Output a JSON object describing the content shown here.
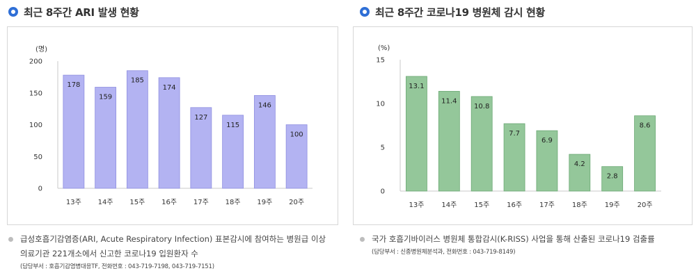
{
  "colors": {
    "bullet": "#2f6fd6",
    "ari_bar": "#b3b3f2",
    "ari_bar_edge": "#8f8fe0",
    "covid_bar": "#94c79a",
    "covid_bar_edge": "#6aa873",
    "axis": "#c8c8c8"
  },
  "left": {
    "heading": "최근 8주간 ARI 발생 현황",
    "note_line1": "급성호흡기감염증(ARI, Acute Respiratory Infection) 표본감시에 참여하는 병원급 이상",
    "note_line2": "의료기관 221개소에서 신고한 코로나19 입원환자 수",
    "contact": "(담당부서 : 호흡기감염병대응TF, 전화번호 : 043-719-7198, 043-719-7151)"
  },
  "right": {
    "heading": "최근 8주간 코로나19 병원체 감시 현황",
    "note_line1": "국가 호흡기바이러스 병원체 통합감시(K-RISS) 사업을 통해 산출된 코로나19 검출률",
    "contact": "(담당부서 : 신종병원체분석과, 전화번호 : 043-719-8149)"
  },
  "chart_data": [
    {
      "type": "bar",
      "unit": "(명)",
      "categories": [
        "13주",
        "14주",
        "15주",
        "16주",
        "17주",
        "18주",
        "19주",
        "20주"
      ],
      "values": [
        178,
        159,
        185,
        174,
        127,
        115,
        146,
        100
      ],
      "yticks": [
        0,
        50,
        100,
        150,
        200
      ],
      "ylim": [
        0,
        200
      ],
      "grid": false
    },
    {
      "type": "bar",
      "unit": "(%)",
      "categories": [
        "13주",
        "14주",
        "15주",
        "16주",
        "17주",
        "18주",
        "19주",
        "20주"
      ],
      "values": [
        13.1,
        11.4,
        10.8,
        7.7,
        6.9,
        4.2,
        2.8,
        8.6
      ],
      "yticks": [
        0,
        5,
        10,
        15
      ],
      "ylim": [
        0,
        15
      ],
      "grid": false
    }
  ]
}
